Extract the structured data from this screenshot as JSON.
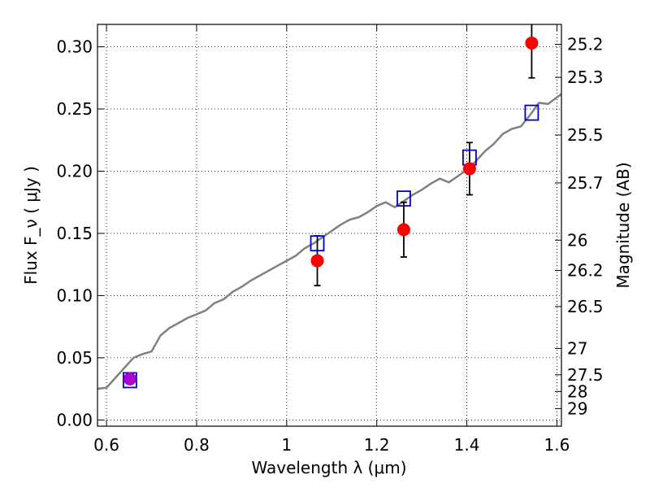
{
  "chart_data": {
    "type": "scatter",
    "xlabel": "Wavelength  λ (μm)",
    "ylabel": "Flux  F_ν  ( μJy )",
    "ylabel_right": "Magnitude (AB)",
    "xlim": [
      0.58,
      1.61
    ],
    "ylim": [
      -0.005,
      0.318
    ],
    "grid": true,
    "x_ticks": [
      0.6,
      0.8,
      1,
      1.2,
      1.4,
      1.6
    ],
    "x_tick_labels": [
      "0.6",
      "0.8",
      "1",
      "1.2",
      "1.4",
      "1.6"
    ],
    "y_ticks": [
      0.0,
      0.05,
      0.1,
      0.15,
      0.2,
      0.25,
      0.3
    ],
    "y_tick_labels": [
      "0.00",
      "0.05",
      "0.10",
      "0.15",
      "0.20",
      "0.25",
      "0.30"
    ],
    "right_ticks": [
      "25.2",
      "25.3",
      "25.5",
      "25.7",
      "26",
      "26.2",
      "26.5",
      "27",
      "27.5",
      "28",
      "29"
    ],
    "colors": {
      "spectrum": "#808080",
      "observed": "#ff0000",
      "model": "#0000cc",
      "first_point": "#aa00cc",
      "errorbar": "#000000",
      "grid": "#000000"
    },
    "series": [
      {
        "kind": "line",
        "x": [
          0.58,
          0.6,
          0.62,
          0.64,
          0.66,
          0.68,
          0.7,
          0.72,
          0.74,
          0.76,
          0.78,
          0.8,
          0.82,
          0.84,
          0.86,
          0.88,
          0.9,
          0.92,
          0.94,
          0.96,
          0.98,
          1.0,
          1.02,
          1.04,
          1.06,
          1.08,
          1.1,
          1.12,
          1.14,
          1.16,
          1.18,
          1.2,
          1.22,
          1.24,
          1.26,
          1.28,
          1.3,
          1.32,
          1.34,
          1.36,
          1.38,
          1.4,
          1.42,
          1.44,
          1.46,
          1.48,
          1.5,
          1.52,
          1.54,
          1.56,
          1.58,
          1.61
        ],
        "y": [
          0.025,
          0.026,
          0.034,
          0.042,
          0.05,
          0.053,
          0.055,
          0.068,
          0.074,
          0.078,
          0.082,
          0.085,
          0.088,
          0.094,
          0.097,
          0.103,
          0.107,
          0.112,
          0.116,
          0.12,
          0.124,
          0.128,
          0.132,
          0.138,
          0.142,
          0.147,
          0.152,
          0.157,
          0.161,
          0.163,
          0.167,
          0.172,
          0.175,
          0.171,
          0.176,
          0.181,
          0.185,
          0.19,
          0.194,
          0.191,
          0.196,
          0.201,
          0.208,
          0.216,
          0.222,
          0.23,
          0.234,
          0.236,
          0.245,
          0.255,
          0.254,
          0.262
        ]
      },
      {
        "kind": "points",
        "points": [
          {
            "x": 0.652,
            "y": 0.033,
            "err": 0.004,
            "model": 0.032
          },
          {
            "x": 1.068,
            "y": 0.128,
            "err": 0.02,
            "model": 0.142
          },
          {
            "x": 1.26,
            "y": 0.153,
            "err": 0.022,
            "model": 0.178
          },
          {
            "x": 1.406,
            "y": 0.202,
            "err": 0.021,
            "model": 0.211
          },
          {
            "x": 1.544,
            "y": 0.303,
            "err": 0.028,
            "model": 0.247
          }
        ]
      }
    ]
  }
}
